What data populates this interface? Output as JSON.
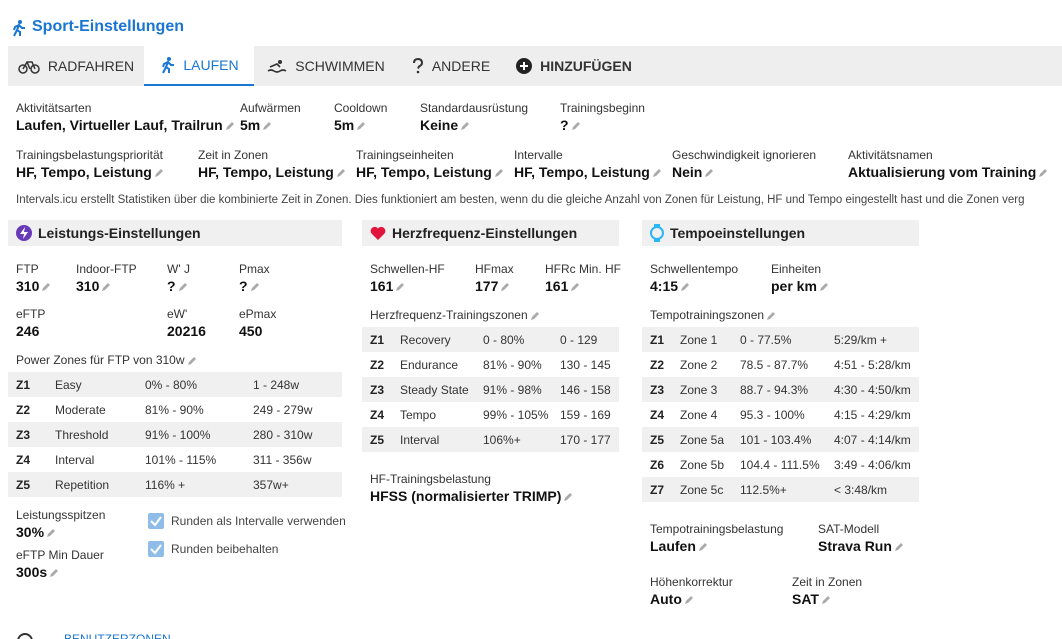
{
  "header": {
    "title": "Sport-Einstellungen"
  },
  "tabs": [
    {
      "label": "RADFAHREN",
      "active": false
    },
    {
      "label": "LAUFEN",
      "active": true
    },
    {
      "label": "SCHWIMMEN",
      "active": false
    },
    {
      "label": "ANDERE",
      "active": false
    },
    {
      "label": "HINZUFÜGEN",
      "active": false
    }
  ],
  "general": {
    "row1": [
      {
        "label": "Aktivitätsarten",
        "value": "Laufen, Virtueller Lauf, Trailrun"
      },
      {
        "label": "Aufwärmen",
        "value": "5m"
      },
      {
        "label": "Cooldown",
        "value": "5m"
      },
      {
        "label": "Standardausrüstung",
        "value": "Keine"
      },
      {
        "label": "Trainingsbeginn",
        "value": "?"
      }
    ],
    "row2": [
      {
        "label": "Trainingsbelastungspriorität",
        "value": "HF, Tempo, Leistung"
      },
      {
        "label": "Zeit in Zonen",
        "value": "HF, Tempo, Leistung"
      },
      {
        "label": "Trainingseinheiten",
        "value": "HF, Tempo, Leistung"
      },
      {
        "label": "Intervalle",
        "value": "HF, Tempo, Leistung"
      },
      {
        "label": "Geschwindigkeit ignorieren",
        "value": "Nein"
      },
      {
        "label": "Aktivitätsnamen",
        "value": "Aktualisierung vom Training"
      }
    ],
    "note": "Intervals.icu erstellt Statistiken über die kombinierte Zeit in Zonen. Dies funktioniert am besten, wenn du die gleiche Anzahl von Zonen für Leistung, HF und Tempo eingestellt hast und die Zonen verg"
  },
  "power": {
    "title": "Leistungs-Einstellungen",
    "fields": [
      {
        "label": "FTP",
        "value": "310",
        "editable": true
      },
      {
        "label": "Indoor-FTP",
        "value": "310",
        "editable": true
      },
      {
        "label": "W' J",
        "value": "?",
        "editable": true
      },
      {
        "label": "Pmax",
        "value": "?",
        "editable": true
      }
    ],
    "estimates": [
      {
        "label": "eFTP",
        "value": "246"
      },
      {
        "label": "eW'",
        "value": "20216"
      },
      {
        "label": "ePmax",
        "value": "450"
      }
    ],
    "zones_title": "Power Zones für FTP von 310w",
    "zones": [
      [
        "Z1",
        "Easy",
        "0% - 80%",
        "1 - 248w"
      ],
      [
        "Z2",
        "Moderate",
        "81% - 90%",
        "249 - 279w"
      ],
      [
        "Z3",
        "Threshold",
        "91% - 100%",
        "280 - 310w"
      ],
      [
        "Z4",
        "Interval",
        "101% - 115%",
        "311 - 356w"
      ],
      [
        "Z5",
        "Repetition",
        "116% +",
        "357w+"
      ]
    ],
    "extra": [
      {
        "label": "Leistungsspitzen",
        "value": "30%"
      },
      {
        "label": "eFTP Min Dauer",
        "value": "300s"
      }
    ],
    "checkboxes": [
      {
        "label": "Runden als Intervalle verwenden",
        "checked": true
      },
      {
        "label": "Runden beibehalten",
        "checked": true
      }
    ]
  },
  "heart_rate": {
    "title": "Herzfrequenz-Einstellungen",
    "fields": [
      {
        "label": "Schwellen-HF",
        "value": "161"
      },
      {
        "label": "HFmax",
        "value": "177"
      },
      {
        "label": "HFRc Min. HF",
        "value": "161"
      }
    ],
    "zones_title": "Herzfrequenz-Trainingszonen",
    "zones": [
      [
        "Z1",
        "Recovery",
        "0 - 80%",
        "0 - 129"
      ],
      [
        "Z2",
        "Endurance",
        "81% - 90%",
        "130 - 145"
      ],
      [
        "Z3",
        "Steady State",
        "91% - 98%",
        "146 - 158"
      ],
      [
        "Z4",
        "Tempo",
        "99% - 105%",
        "159 - 169"
      ],
      [
        "Z5",
        "Interval",
        "106%+",
        "170 - 177"
      ]
    ],
    "load": {
      "label": "HF-Trainingsbelastung",
      "value": "HFSS (normalisierter TRIMP)"
    }
  },
  "pace": {
    "title": "Tempoeinstellungen",
    "fields": [
      {
        "label": "Schwellentempo",
        "value": "4:15"
      },
      {
        "label": "Einheiten",
        "value": "per km"
      }
    ],
    "zones_title": "Tempotrainingszonen",
    "zones": [
      [
        "Z1",
        "Zone 1",
        "0 - 77.5%",
        "5:29/km +"
      ],
      [
        "Z2",
        "Zone 2",
        "78.5 - 87.7%",
        "4:51 - 5:28/km"
      ],
      [
        "Z3",
        "Zone 3",
        "88.7 - 94.3%",
        "4:30 - 4:50/km"
      ],
      [
        "Z4",
        "Zone 4",
        "95.3 - 100%",
        "4:15 - 4:29/km"
      ],
      [
        "Z5",
        "Zone 5a",
        "101 - 103.4%",
        "4:07 - 4:14/km"
      ],
      [
        "Z6",
        "Zone 5b",
        "104.4 - 111.5%",
        "3:49 - 4:06/km"
      ],
      [
        "Z7",
        "Zone 5c",
        "112.5%+",
        "< 3:48/km"
      ]
    ],
    "extra": [
      {
        "label": "Tempotrainingsbelastung",
        "value": "Laufen"
      },
      {
        "label": "SAT-Modell",
        "value": "Strava Run"
      },
      {
        "label": "Höhenkorrektur",
        "value": "Auto"
      },
      {
        "label": "Zeit in Zonen",
        "value": "SAT"
      }
    ]
  },
  "footer": {
    "link": "BENUTZERZONEN"
  }
}
